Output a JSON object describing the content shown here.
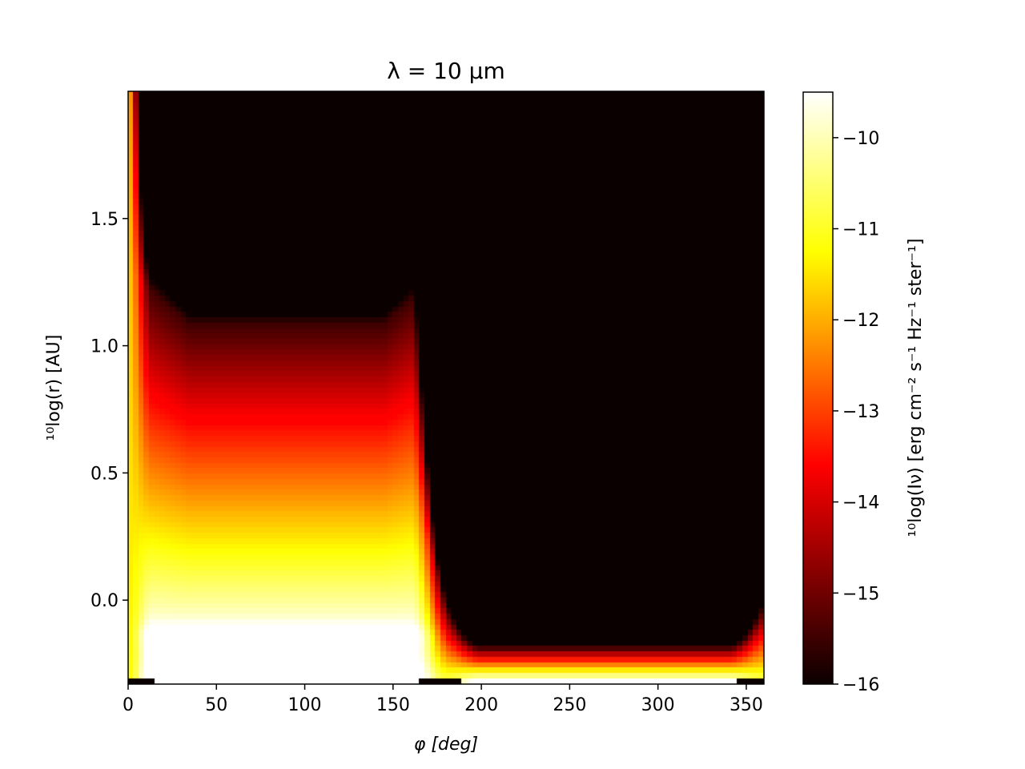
{
  "chart_data": {
    "type": "heatmap",
    "title": "λ = 10 μm",
    "xlabel": "φ [deg]",
    "ylabel": "¹⁰log(r) [AU]",
    "colorbar_label": "¹⁰log(Iν) [erg cm⁻² s⁻¹ Hz⁻¹ ster⁻¹]",
    "colormap": "hot",
    "x_range": [
      0,
      360
    ],
    "y_range": [
      -0.33,
      2.0
    ],
    "color_range": [
      -16,
      -9.5
    ],
    "x_ticks": [
      0,
      50,
      100,
      150,
      200,
      250,
      300,
      350
    ],
    "y_ticks": [
      0.0,
      0.5,
      1.0,
      1.5
    ],
    "y_tick_labels": [
      "0.0",
      "0.5",
      "1.0",
      "1.5"
    ],
    "colorbar_ticks": [
      -16,
      -15,
      -14,
      -13,
      -12,
      -11,
      -10
    ],
    "colorbar_tick_labels": [
      "−16",
      "−15",
      "−14",
      "−13",
      "−12",
      "−11",
      "−10"
    ],
    "grid": false,
    "features": {
      "bright_lobe_phi_range": [
        0,
        180
      ],
      "bright_lobe_top_log_r": [
        1.15,
        1.32
      ],
      "faint_lobe_phi_range": [
        180,
        360
      ],
      "inner_ring_log_r": -0.15
    }
  }
}
